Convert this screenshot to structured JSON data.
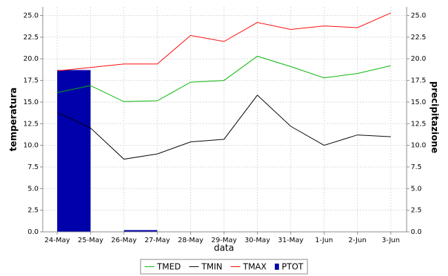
{
  "chart_data": {
    "type": "line",
    "x_label": "data",
    "y_label": "temperatura",
    "y2_label": "precipitazione",
    "categories": [
      "24-May",
      "25-May",
      "26-May",
      "27-May",
      "28-May",
      "29-May",
      "30-May",
      "31-May",
      "1-Jun",
      "2-Jun",
      "3-Jun"
    ],
    "series": [
      {
        "name": "TMED",
        "color": "#00b400",
        "values": [
          16.1,
          16.9,
          15.05,
          15.15,
          17.3,
          17.5,
          20.3,
          19.1,
          17.8,
          18.3,
          19.2
        ]
      },
      {
        "name": "TMIN",
        "color": "#000000",
        "values": [
          13.8,
          12.0,
          8.4,
          9.0,
          10.4,
          10.7,
          15.8,
          12.2,
          10.0,
          11.2,
          11.0
        ]
      },
      {
        "name": "TMAX",
        "color": "#ff0000",
        "values": [
          18.6,
          19.0,
          19.4,
          19.4,
          22.7,
          22.0,
          24.2,
          23.4,
          23.8,
          23.6,
          25.3
        ]
      },
      {
        "name": "PTOT",
        "color": "#0000aa",
        "type": "bar",
        "axis": "y2",
        "values": [
          18.7,
          0,
          0.2,
          0,
          0,
          0,
          0,
          0,
          0,
          0,
          0
        ]
      }
    ],
    "ylim": [
      0,
      26
    ],
    "yticks": [
      {
        "value": 0,
        "label": "0.0"
      },
      {
        "value": 2.5,
        "label": "2.5"
      },
      {
        "value": 5,
        "label": "5.0"
      },
      {
        "value": 7.5,
        "label": "7.5"
      },
      {
        "value": 10,
        "label": "10.0"
      },
      {
        "value": 12.5,
        "label": "12.5"
      },
      {
        "value": 15,
        "label": "15.0"
      },
      {
        "value": 17.5,
        "label": "17.5"
      },
      {
        "value": 20,
        "label": "20.0"
      },
      {
        "value": 22.5,
        "label": "22.5"
      },
      {
        "value": 25,
        "label": "25.0"
      }
    ],
    "y2lim": [
      0,
      26
    ],
    "y2ticks": [
      {
        "value": 0,
        "label": "0.0"
      },
      {
        "value": 2.5,
        "label": "2.5"
      },
      {
        "value": 5,
        "label": "5.0"
      },
      {
        "value": 7.5,
        "label": "7.5"
      },
      {
        "value": 10,
        "label": "10.0"
      },
      {
        "value": 12.5,
        "label": "12.5"
      },
      {
        "value": 15,
        "label": "15.0"
      },
      {
        "value": 17.5,
        "label": "17.5"
      },
      {
        "value": 20,
        "label": "20.0"
      },
      {
        "value": 22.5,
        "label": "22.5"
      },
      {
        "value": 25,
        "label": "25.0"
      }
    ],
    "grid": true,
    "legend": "bottom"
  }
}
